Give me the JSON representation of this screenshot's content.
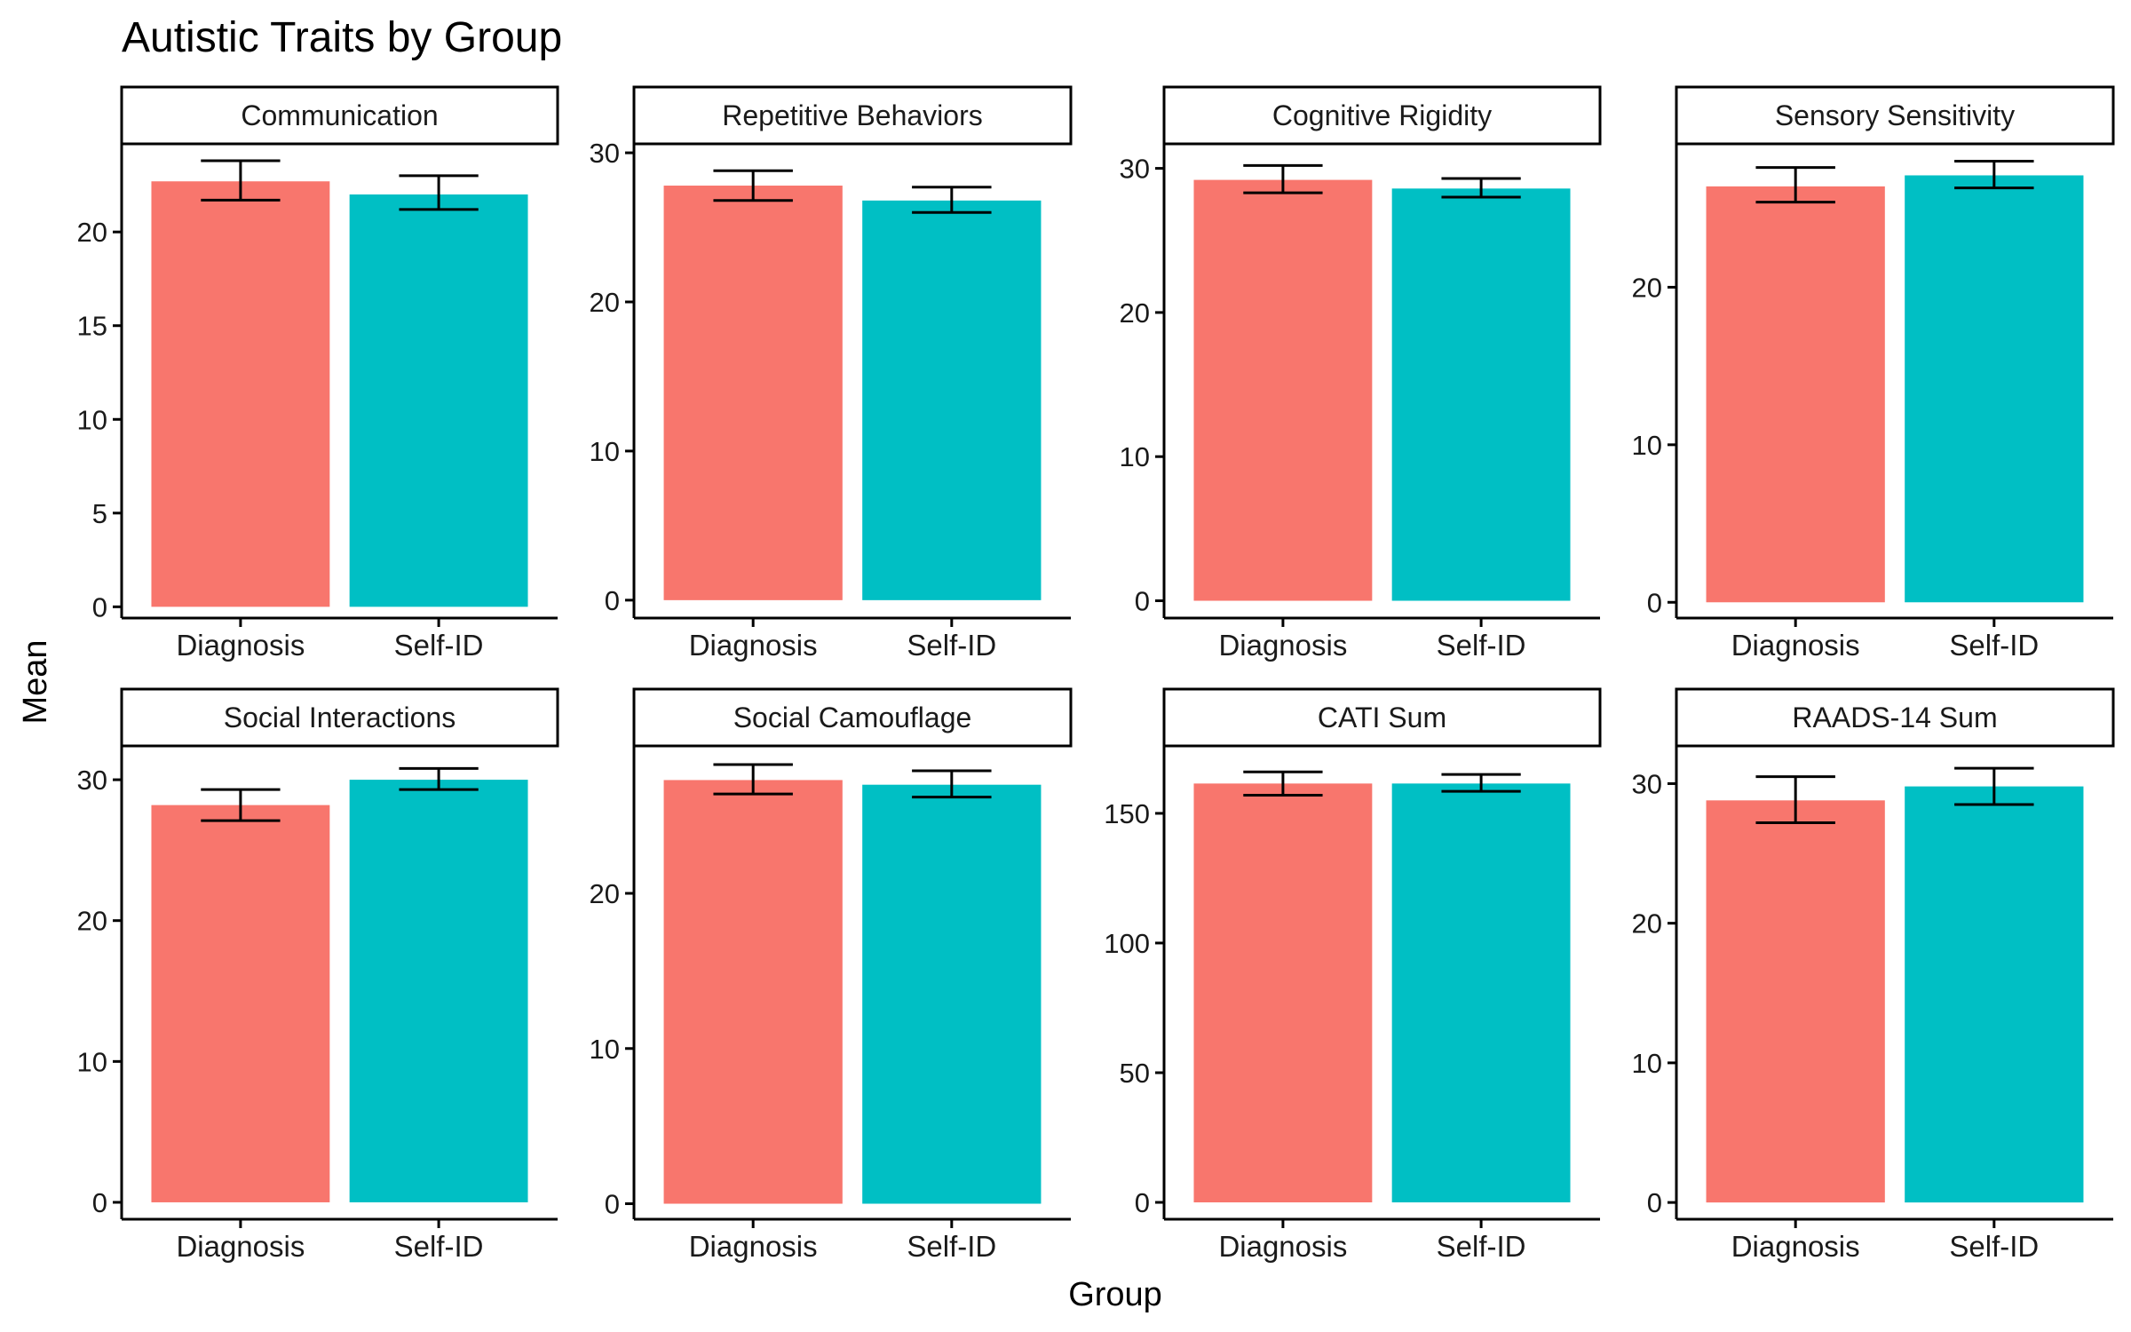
{
  "figure": {
    "title": "Autistic Traits by Group",
    "xlabel": "Group",
    "ylabel": "Mean"
  },
  "colors": {
    "diagnosis": "#F8766D",
    "self_id": "#00BFC4",
    "axis": "#000000",
    "errorbar": "#000000",
    "strip_background": "#ffffff"
  },
  "chart_data": [
    {
      "type": "bar",
      "title": "Communication",
      "categories": [
        "Diagnosis",
        "Self-ID"
      ],
      "values": [
        22.7,
        22.0
      ],
      "error_low": [
        21.7,
        21.2
      ],
      "error_high": [
        23.8,
        23.0
      ],
      "yticks": [
        0,
        5,
        10,
        15,
        20
      ],
      "ylim": [
        -0.6,
        24.7
      ],
      "grid": false
    },
    {
      "type": "bar",
      "title": "Repetitive Behaviors",
      "categories": [
        "Diagnosis",
        "Self-ID"
      ],
      "values": [
        27.8,
        26.8
      ],
      "error_low": [
        26.8,
        26.0
      ],
      "error_high": [
        28.8,
        27.7
      ],
      "yticks": [
        0,
        10,
        20,
        30
      ],
      "ylim": [
        -1.2,
        30.6
      ],
      "grid": false
    },
    {
      "type": "bar",
      "title": "Cognitive Rigidity",
      "categories": [
        "Diagnosis",
        "Self-ID"
      ],
      "values": [
        29.2,
        28.6
      ],
      "error_low": [
        28.3,
        28.0
      ],
      "error_high": [
        30.2,
        29.3
      ],
      "yticks": [
        0,
        10,
        20,
        30
      ],
      "ylim": [
        -1.2,
        31.7
      ],
      "grid": false
    },
    {
      "type": "bar",
      "title": "Sensory Sensitivity",
      "categories": [
        "Diagnosis",
        "Self-ID"
      ],
      "values": [
        26.4,
        27.1
      ],
      "error_low": [
        25.4,
        26.3
      ],
      "error_high": [
        27.6,
        28.0
      ],
      "yticks": [
        0,
        10,
        20
      ],
      "ylim": [
        -1.0,
        29.1
      ],
      "grid": false
    },
    {
      "type": "bar",
      "title": "Social Interactions",
      "categories": [
        "Diagnosis",
        "Self-ID"
      ],
      "values": [
        28.2,
        30.0
      ],
      "error_low": [
        27.1,
        29.3
      ],
      "error_high": [
        29.3,
        30.8
      ],
      "yticks": [
        0,
        10,
        20,
        30
      ],
      "ylim": [
        -1.2,
        32.4
      ],
      "grid": false
    },
    {
      "type": "bar",
      "title": "Social Camouflage",
      "categories": [
        "Diagnosis",
        "Self-ID"
      ],
      "values": [
        27.3,
        27.0
      ],
      "error_low": [
        26.4,
        26.2
      ],
      "error_high": [
        28.3,
        27.9
      ],
      "yticks": [
        0,
        10,
        20
      ],
      "ylim": [
        -1.0,
        29.5
      ],
      "grid": false
    },
    {
      "type": "bar",
      "title": "CATI Sum",
      "categories": [
        "Diagnosis",
        "Self-ID"
      ],
      "values": [
        161.5,
        161.5
      ],
      "error_low": [
        157.0,
        158.5
      ],
      "error_high": [
        166.0,
        165.0
      ],
      "yticks": [
        0,
        50,
        100,
        150
      ],
      "ylim": [
        -6.5,
        176.0
      ],
      "grid": false
    },
    {
      "type": "bar",
      "title": "RAADS-14 Sum",
      "categories": [
        "Diagnosis",
        "Self-ID"
      ],
      "values": [
        28.8,
        29.8
      ],
      "error_low": [
        27.2,
        28.5
      ],
      "error_high": [
        30.5,
        31.1
      ],
      "yticks": [
        0,
        10,
        20,
        30
      ],
      "ylim": [
        -1.2,
        32.7
      ],
      "grid": false
    }
  ]
}
